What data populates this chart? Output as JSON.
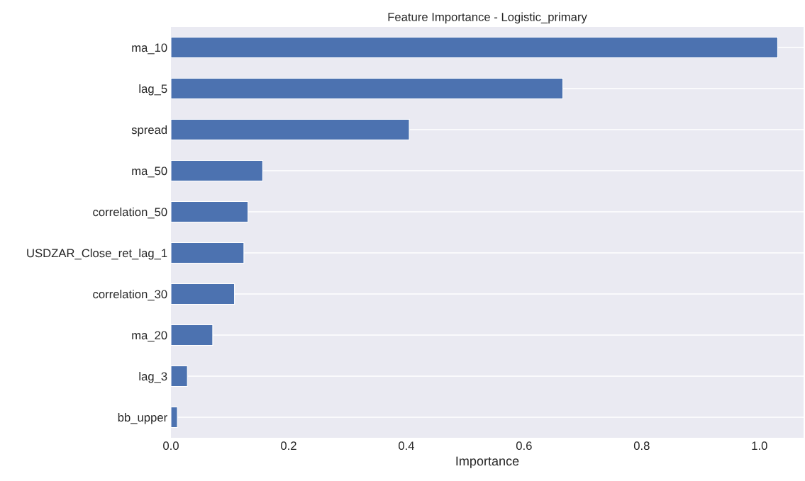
{
  "chart_data": {
    "type": "bar",
    "orientation": "horizontal",
    "title": "Feature Importance - Logistic_primary",
    "xlabel": "Importance",
    "categories": [
      "ma_10",
      "lag_5",
      "spread",
      "ma_50",
      "correlation_50",
      "USDZAR_Close_ret_lag_1",
      "correlation_30",
      "ma_20",
      "lag_3",
      "bb_upper"
    ],
    "values": [
      1.031,
      0.666,
      0.405,
      0.156,
      0.131,
      0.124,
      0.108,
      0.071,
      0.028,
      0.011
    ],
    "color": "#4c72b0",
    "xlim": [
      0,
      1.075
    ],
    "xticks": [
      {
        "value": 0,
        "label": "0.0"
      },
      {
        "value": 0.2,
        "label": "0.2"
      },
      {
        "value": 0.4,
        "label": "0.4"
      },
      {
        "value": 0.6,
        "label": "0.6"
      },
      {
        "value": 0.8,
        "label": "0.8"
      },
      {
        "value": 1.0,
        "label": "1.0"
      }
    ],
    "grid": "y",
    "legend": false
  }
}
